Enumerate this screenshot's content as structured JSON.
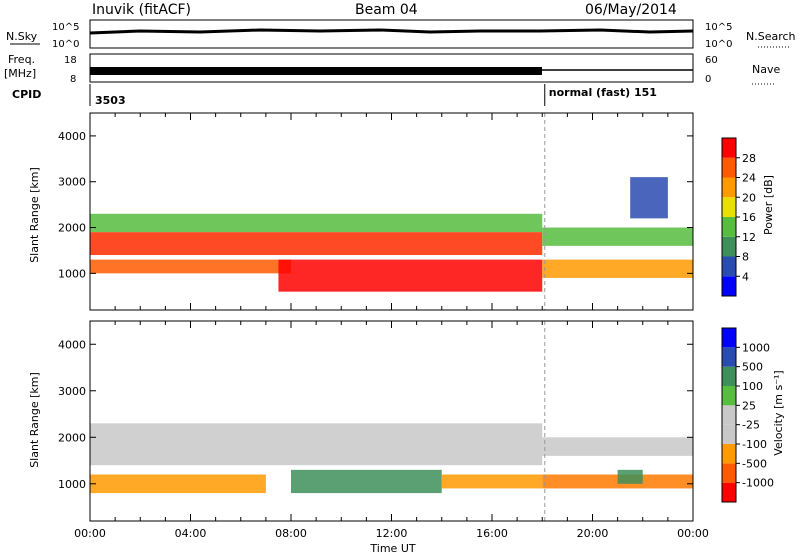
{
  "header": {
    "site": "Inuvik (fitACF)",
    "beam": "Beam 04",
    "date": "06/May/2014"
  },
  "top_panels": {
    "nsky_label": "N.Sky",
    "nsearch_label": "N.Search",
    "noise_ticks": [
      "10^5",
      "10^0"
    ],
    "freq_label_1": "Freq.",
    "freq_label_2": "[MHz]",
    "freq_ticks": [
      "18",
      "8"
    ],
    "nave_label": "Nave",
    "nave_ticks": [
      "60",
      "0"
    ],
    "cpid_label": "CPID",
    "cpid_first": "3503",
    "cpid_second": "normal (fast) 151",
    "cpid_switch_hour": 18.1
  },
  "colors": {
    "power_scale": [
      "#0000ff",
      "#2a4bb0",
      "#3e8f5a",
      "#56bd3f",
      "#e8e000",
      "#ff9a00",
      "#ff5a00",
      "#ff0000"
    ],
    "velocity_scale": [
      "#ff0000",
      "#ff5a00",
      "#ff9a00",
      "#c8c8c8",
      "#c8c8c8",
      "#56bd3f",
      "#3e8f5a",
      "#2a4bb0",
      "#0000ff"
    ]
  },
  "chart_data": [
    {
      "type": "heatmap",
      "name": "power",
      "ylabel": "Slant Range [km]",
      "colorbar_label": "Power [dB]",
      "colorbar_ticks": [
        "28",
        "24",
        "20",
        "16",
        "12",
        "8",
        "4"
      ],
      "yticks": [
        "4000",
        "3000",
        "2000",
        "1000"
      ],
      "ylim": [
        200,
        4500
      ],
      "xlim": [
        0,
        24
      ],
      "bands": [
        {
          "t0": 0,
          "t1": 8,
          "r0": 1000,
          "r1": 1300,
          "color": "#ff5a00"
        },
        {
          "t0": 0,
          "t1": 18,
          "r0": 1400,
          "r1": 1900,
          "color": "#ff2a00"
        },
        {
          "t0": 0,
          "t1": 18,
          "r0": 1900,
          "r1": 2300,
          "color": "#56bd3f"
        },
        {
          "t0": 7.5,
          "t1": 18,
          "r0": 600,
          "r1": 1300,
          "color": "#ff0000"
        },
        {
          "t0": 18,
          "t1": 24,
          "r0": 900,
          "r1": 1300,
          "color": "#ff9a00"
        },
        {
          "t0": 18,
          "t1": 24,
          "r0": 1600,
          "r1": 2000,
          "color": "#56bd3f"
        },
        {
          "t0": 21.5,
          "t1": 23,
          "r0": 2200,
          "r1": 3100,
          "color": "#2a4bb0"
        }
      ]
    },
    {
      "type": "heatmap",
      "name": "velocity",
      "ylabel": "Slant Range [km]",
      "xlabel": "Time UT",
      "colorbar_label": "Velocity [m s⁻¹]",
      "colorbar_ticks": [
        "1000",
        "500",
        "100",
        "25",
        "-25",
        "-100",
        "-500",
        "-1000"
      ],
      "yticks": [
        "4000",
        "3000",
        "2000",
        "1000"
      ],
      "xticks": [
        "00:00",
        "04:00",
        "08:00",
        "12:00",
        "16:00",
        "20:00",
        "00:00"
      ],
      "ylim": [
        200,
        4500
      ],
      "xlim": [
        0,
        24
      ],
      "bands": [
        {
          "t0": 0,
          "t1": 18,
          "r0": 1400,
          "r1": 2300,
          "color": "#c8c8c8"
        },
        {
          "t0": 0,
          "t1": 7,
          "r0": 800,
          "r1": 1200,
          "color": "#ff9a00"
        },
        {
          "t0": 8,
          "t1": 14,
          "r0": 800,
          "r1": 1300,
          "color": "#3e8f5a"
        },
        {
          "t0": 14,
          "t1": 18,
          "r0": 900,
          "r1": 1200,
          "color": "#ff9a00"
        },
        {
          "t0": 18,
          "t1": 24,
          "r0": 900,
          "r1": 1200,
          "color": "#ff7a00"
        },
        {
          "t0": 21,
          "t1": 22,
          "r0": 1000,
          "r1": 1300,
          "color": "#3e8f5a"
        },
        {
          "t0": 18,
          "t1": 24,
          "r0": 1600,
          "r1": 2000,
          "color": "#c8c8c8"
        }
      ]
    }
  ]
}
